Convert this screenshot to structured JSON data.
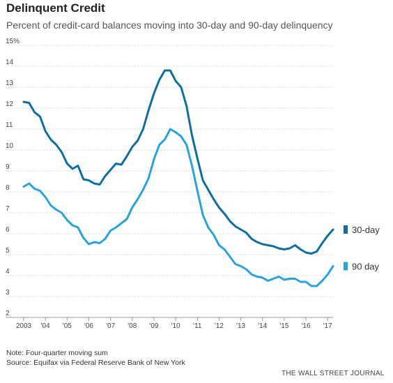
{
  "chart_data": {
    "type": "line",
    "title": "Delinquent Credit",
    "subtitle": "Percent of credit-card balances moving into 30-day and 90-day delinquency",
    "xlabel": "",
    "ylabel": "",
    "xlim": [
      2003.0,
      2017.25
    ],
    "ylim": [
      2,
      15
    ],
    "y_ticks": [
      "2",
      "3",
      "4",
      "5",
      "6",
      "7",
      "8",
      "9",
      "10",
      "11",
      "12",
      "13",
      "14",
      "15%"
    ],
    "y_tick_values": [
      2,
      3,
      4,
      5,
      6,
      7,
      8,
      9,
      10,
      11,
      12,
      13,
      14,
      15
    ],
    "x_ticks": [
      "2003",
      "'04",
      "'05",
      "'06",
      "'07",
      "'08",
      "'09",
      "'10",
      "'11",
      "'12",
      "'13",
      "'14",
      "'15",
      "'16",
      "'17"
    ],
    "x_tick_values": [
      2003,
      2004,
      2005,
      2006,
      2007,
      2008,
      2009,
      2010,
      2011,
      2012,
      2013,
      2014,
      2015,
      2016,
      2017
    ],
    "grid": true,
    "legend": "right end of lines",
    "x": [
      2003.0,
      2003.25,
      2003.5,
      2003.75,
      2004.0,
      2004.25,
      2004.5,
      2004.75,
      2005.0,
      2005.25,
      2005.5,
      2005.75,
      2006.0,
      2006.25,
      2006.5,
      2006.75,
      2007.0,
      2007.25,
      2007.5,
      2007.75,
      2008.0,
      2008.25,
      2008.5,
      2008.75,
      2009.0,
      2009.25,
      2009.5,
      2009.75,
      2010.0,
      2010.25,
      2010.5,
      2010.75,
      2011.0,
      2011.25,
      2011.5,
      2011.75,
      2012.0,
      2012.25,
      2012.5,
      2012.75,
      2013.0,
      2013.25,
      2013.5,
      2013.75,
      2014.0,
      2014.25,
      2014.5,
      2014.75,
      2015.0,
      2015.25,
      2015.5,
      2015.75,
      2016.0,
      2016.25,
      2016.5,
      2016.75,
      2017.0,
      2017.25
    ],
    "series": [
      {
        "name": "30-day",
        "color": "#0b6fa4",
        "values": [
          12.3,
          12.25,
          11.8,
          11.6,
          10.9,
          10.5,
          10.25,
          9.9,
          9.35,
          9.1,
          9.25,
          8.6,
          8.55,
          8.4,
          8.35,
          8.75,
          9.05,
          9.35,
          9.3,
          9.7,
          10.15,
          10.45,
          11.0,
          11.9,
          12.7,
          13.35,
          13.8,
          13.8,
          13.3,
          13.0,
          12.1,
          10.7,
          9.6,
          8.55,
          8.1,
          7.65,
          7.25,
          6.95,
          6.6,
          6.35,
          6.2,
          6.05,
          5.75,
          5.6,
          5.5,
          5.45,
          5.4,
          5.3,
          5.25,
          5.3,
          5.45,
          5.25,
          5.1,
          5.05,
          5.15,
          5.55,
          5.9,
          6.2
        ]
      },
      {
        "name": "90 day",
        "color": "#27a3de",
        "values": [
          8.25,
          8.4,
          8.15,
          8.05,
          7.75,
          7.35,
          7.15,
          7.0,
          6.65,
          6.4,
          6.3,
          5.8,
          5.5,
          5.6,
          5.55,
          5.75,
          6.15,
          6.3,
          6.5,
          6.7,
          7.25,
          7.65,
          8.1,
          8.65,
          9.55,
          10.25,
          10.5,
          11.0,
          10.85,
          10.65,
          10.25,
          9.25,
          8.05,
          6.9,
          6.3,
          5.95,
          5.45,
          5.25,
          4.9,
          4.55,
          4.45,
          4.3,
          4.05,
          3.95,
          3.9,
          3.75,
          3.85,
          3.95,
          3.8,
          3.85,
          3.85,
          3.7,
          3.7,
          3.5,
          3.5,
          3.75,
          4.05,
          4.45
        ]
      }
    ]
  },
  "footer": {
    "note": "Note: Four-quarter moving sum",
    "source": "Source: Equifax via Federal Reserve Bank of New York",
    "credit": "THE WALL STREET JOURNAL"
  }
}
